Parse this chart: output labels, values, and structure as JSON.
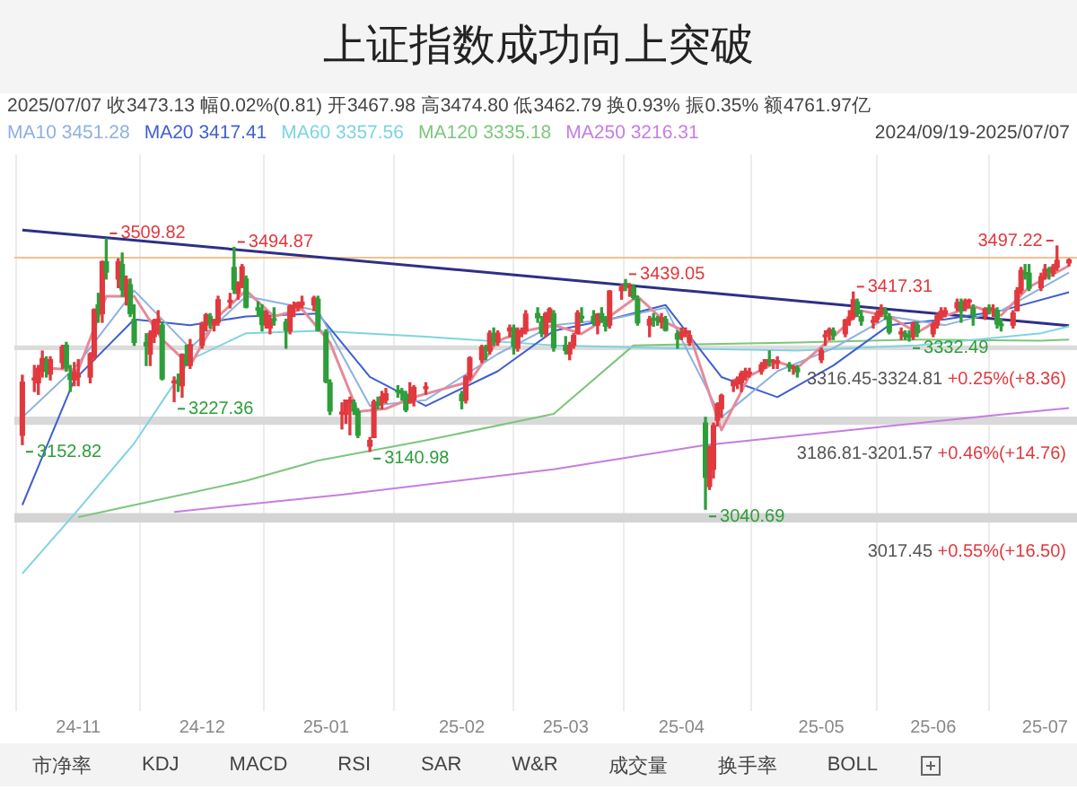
{
  "chart_data": {
    "type": "candlestick",
    "title": "上证指数成功向上突破",
    "x": [
      "2024-10-18",
      "2024-10-21",
      "2024-10-22",
      "2024-10-23",
      "2024-10-24",
      "2024-10-25",
      "2024-10-28",
      "2024-10-29",
      "2024-10-30",
      "2024-10-31",
      "2024-11-01",
      "2024-11-04",
      "2024-11-05",
      "2024-11-06",
      "2024-11-07",
      "2024-11-08",
      "2024-11-11",
      "2024-11-12",
      "2024-11-13",
      "2024-11-14",
      "2024-11-15",
      "2024-11-18",
      "2024-11-19",
      "2024-11-20",
      "2024-11-21",
      "2024-11-22",
      "2024-11-25",
      "2024-11-26",
      "2024-11-27",
      "2024-11-28",
      "2024-11-29",
      "2024-12-02",
      "2024-12-03",
      "2024-12-04",
      "2024-12-05",
      "2024-12-06",
      "2024-12-09",
      "2024-12-10",
      "2024-12-11",
      "2024-12-12",
      "2024-12-13",
      "2024-12-16",
      "2024-12-17",
      "2024-12-18",
      "2024-12-19",
      "2024-12-20",
      "2024-12-23",
      "2024-12-24",
      "2024-12-25",
      "2024-12-26",
      "2024-12-27",
      "2024-12-30",
      "2024-12-31",
      "2025-01-02",
      "2025-01-03",
      "2025-01-06",
      "2025-01-07",
      "2025-01-08",
      "2025-01-09",
      "2025-01-10",
      "2025-01-13",
      "2025-01-14",
      "2025-01-15",
      "2025-01-16",
      "2025-01-17",
      "2025-01-20",
      "2025-01-21",
      "2025-01-22",
      "2025-01-23",
      "2025-01-24",
      "2025-01-27",
      "2025-02-05",
      "2025-02-06",
      "2025-02-07",
      "2025-02-10",
      "2025-02-11",
      "2025-02-12",
      "2025-02-13",
      "2025-02-14",
      "2025-02-17",
      "2025-02-18",
      "2025-02-19",
      "2025-02-20",
      "2025-02-21",
      "2025-02-24",
      "2025-02-25",
      "2025-02-26",
      "2025-02-27",
      "2025-02-28",
      "2025-03-03",
      "2025-03-04",
      "2025-03-05",
      "2025-03-06",
      "2025-03-07",
      "2025-03-10",
      "2025-03-11",
      "2025-03-12",
      "2025-03-13",
      "2025-03-14",
      "2025-03-17",
      "2025-03-18",
      "2025-03-19",
      "2025-03-20",
      "2025-03-21",
      "2025-03-24",
      "2025-03-25",
      "2025-03-26",
      "2025-03-27",
      "2025-03-28",
      "2025-03-31",
      "2025-04-01",
      "2025-04-02",
      "2025-04-03",
      "2025-04-07",
      "2025-04-08",
      "2025-04-09",
      "2025-04-10",
      "2025-04-11",
      "2025-04-14",
      "2025-04-15",
      "2025-04-16",
      "2025-04-17",
      "2025-04-18",
      "2025-04-21",
      "2025-04-22",
      "2025-04-23",
      "2025-04-24",
      "2025-04-25",
      "2025-04-28",
      "2025-04-29",
      "2025-04-30",
      "2025-05-06",
      "2025-05-07",
      "2025-05-08",
      "2025-05-09",
      "2025-05-12",
      "2025-05-13",
      "2025-05-14",
      "2025-05-15",
      "2025-05-16",
      "2025-05-19",
      "2025-05-20",
      "2025-05-21",
      "2025-05-22",
      "2025-05-23",
      "2025-05-26",
      "2025-05-27",
      "2025-05-28",
      "2025-05-29",
      "2025-05-30",
      "2025-06-03",
      "2025-06-04",
      "2025-06-05",
      "2025-06-06",
      "2025-06-09",
      "2025-06-10",
      "2025-06-11",
      "2025-06-12",
      "2025-06-13",
      "2025-06-16",
      "2025-06-17",
      "2025-06-18",
      "2025-06-19",
      "2025-06-20",
      "2025-06-23",
      "2025-06-24",
      "2025-06-25",
      "2025-06-26",
      "2025-06-27",
      "2025-06-30",
      "2025-07-01",
      "2025-07-02",
      "2025-07-03",
      "2025-07-04",
      "2025-07-07"
    ],
    "ohlc": [
      [
        3169,
        3273,
        3152.82,
        3261
      ],
      [
        3265,
        3290,
        3245,
        3268
      ],
      [
        3260,
        3290,
        3240,
        3285
      ],
      [
        3280,
        3315,
        3270,
        3302
      ],
      [
        3295,
        3305,
        3270,
        3280
      ],
      [
        3275,
        3305,
        3265,
        3300
      ],
      [
        3295,
        3325,
        3285,
        3322
      ],
      [
        3325,
        3330,
        3280,
        3286
      ],
      [
        3275,
        3290,
        3245,
        3266
      ],
      [
        3265,
        3295,
        3255,
        3279
      ],
      [
        3270,
        3300,
        3255,
        3272
      ],
      [
        3270,
        3312,
        3260,
        3310
      ],
      [
        3305,
        3388,
        3300,
        3387
      ],
      [
        3395,
        3415,
        3365,
        3383
      ],
      [
        3380,
        3471,
        3365,
        3470
      ],
      [
        3470,
        3509.82,
        3440,
        3452
      ],
      [
        3440,
        3475,
        3425,
        3470
      ],
      [
        3465,
        3485,
        3410,
        3421
      ],
      [
        3410,
        3445,
        3395,
        3439
      ],
      [
        3430,
        3440,
        3375,
        3380
      ],
      [
        3370,
        3395,
        3325,
        3330
      ],
      [
        3330,
        3345,
        3290,
        3324
      ],
      [
        3310,
        3350,
        3290,
        3346
      ],
      [
        3340,
        3370,
        3330,
        3368
      ],
      [
        3365,
        3385,
        3345,
        3370
      ],
      [
        3360,
        3365,
        3265,
        3267
      ],
      [
        3260,
        3270,
        3227.36,
        3263
      ],
      [
        3260,
        3275,
        3245,
        3259
      ],
      [
        3255,
        3310,
        3235,
        3309
      ],
      [
        3305,
        3325,
        3290,
        3295
      ],
      [
        3290,
        3335,
        3285,
        3326
      ],
      [
        3325,
        3365,
        3320,
        3363
      ],
      [
        3360,
        3380,
        3350,
        3378
      ],
      [
        3375,
        3380,
        3355,
        3364
      ],
      [
        3360,
        3370,
        3350,
        3368
      ],
      [
        3365,
        3410,
        3360,
        3404
      ],
      [
        3400,
        3415,
        3390,
        3402
      ],
      [
        3460,
        3494.87,
        3415,
        3422
      ],
      [
        3415,
        3435,
        3405,
        3432
      ],
      [
        3430,
        3465,
        3425,
        3461
      ],
      [
        3440,
        3445,
        3390,
        3391
      ],
      [
        3390,
        3400,
        3375,
        3386
      ],
      [
        3385,
        3395,
        3350,
        3361
      ],
      [
        3360,
        3385,
        3355,
        3382
      ],
      [
        3355,
        3375,
        3345,
        3370
      ],
      [
        3370,
        3390,
        3360,
        3368
      ],
      [
        3365,
        3370,
        3320,
        3351
      ],
      [
        3350,
        3395,
        3345,
        3393
      ],
      [
        3390,
        3400,
        3375,
        3394
      ],
      [
        3390,
        3400,
        3385,
        3398
      ],
      [
        3395,
        3410,
        3390,
        3400
      ],
      [
        3395,
        3410,
        3385,
        3407
      ],
      [
        3405,
        3410,
        3350,
        3351
      ],
      [
        3347,
        3352,
        3260,
        3262
      ],
      [
        3260,
        3265,
        3205,
        3211
      ],
      [
        3206,
        3225,
        3180,
        3206
      ],
      [
        3205,
        3230,
        3190,
        3230
      ],
      [
        3225,
        3235,
        3170,
        3230
      ],
      [
        3225,
        3230,
        3205,
        3211
      ],
      [
        3210,
        3215,
        3165,
        3169
      ],
      [
        3150,
        3165,
        3140.98,
        3160
      ],
      [
        3165,
        3230,
        3165,
        3227
      ],
      [
        3225,
        3235,
        3215,
        3221
      ],
      [
        3225,
        3245,
        3215,
        3236
      ],
      [
        3230,
        3250,
        3225,
        3241
      ],
      [
        3245,
        3255,
        3235,
        3244
      ],
      [
        3245,
        3250,
        3230,
        3242
      ],
      [
        3240,
        3245,
        3210,
        3213
      ],
      [
        3225,
        3260,
        3225,
        3230
      ],
      [
        3230,
        3255,
        3220,
        3252
      ],
      [
        3250,
        3260,
        3240,
        3250
      ],
      [
        3240,
        3245,
        3215,
        3229
      ],
      [
        3230,
        3272,
        3225,
        3270
      ],
      [
        3270,
        3305,
        3265,
        3303
      ],
      [
        3300,
        3325,
        3295,
        3322
      ],
      [
        3320,
        3325,
        3300,
        3318
      ],
      [
        3315,
        3350,
        3310,
        3346
      ],
      [
        3345,
        3355,
        3325,
        3333
      ],
      [
        3330,
        3350,
        3325,
        3346
      ],
      [
        3350,
        3360,
        3340,
        3355
      ],
      [
        3355,
        3360,
        3310,
        3324
      ],
      [
        3320,
        3355,
        3315,
        3351
      ],
      [
        3345,
        3355,
        3340,
        3350
      ],
      [
        3350,
        3385,
        3345,
        3379
      ],
      [
        3380,
        3390,
        3365,
        3373
      ],
      [
        3365,
        3375,
        3340,
        3346
      ],
      [
        3345,
        3382,
        3340,
        3380
      ],
      [
        3380,
        3390,
        3365,
        3388
      ],
      [
        3380,
        3385,
        3315,
        3321
      ],
      [
        3325,
        3340,
        3310,
        3316
      ],
      [
        3310,
        3330,
        3300,
        3324
      ],
      [
        3325,
        3345,
        3320,
        3342
      ],
      [
        3345,
        3385,
        3345,
        3381
      ],
      [
        3375,
        3390,
        3365,
        3372
      ],
      [
        3375,
        3385,
        3360,
        3366
      ],
      [
        3360,
        3380,
        3345,
        3379
      ],
      [
        3380,
        3390,
        3365,
        3371
      ],
      [
        3370,
        3375,
        3350,
        3358
      ],
      [
        3360,
        3420,
        3355,
        3419
      ],
      [
        3420,
        3430,
        3405,
        3426
      ],
      [
        3430,
        3439.05,
        3420,
        3429
      ],
      [
        3425,
        3432,
        3410,
        3426
      ],
      [
        3425,
        3430,
        3405,
        3408
      ],
      [
        3405,
        3410,
        3360,
        3364
      ],
      [
        3360,
        3375,
        3340,
        3370
      ],
      [
        3370,
        3380,
        3358,
        3369
      ],
      [
        3370,
        3375,
        3360,
        3368
      ],
      [
        3365,
        3380,
        3355,
        3373
      ],
      [
        3370,
        3375,
        3350,
        3351
      ],
      [
        3345,
        3350,
        3320,
        3336
      ],
      [
        3340,
        3355,
        3335,
        3348
      ],
      [
        3345,
        3355,
        3340,
        3350
      ],
      [
        3330,
        3350,
        3325,
        3342
      ],
      [
        3190,
        3200,
        3040.69,
        3096
      ],
      [
        3080,
        3150,
        3075,
        3145
      ],
      [
        3110,
        3190,
        3095,
        3186
      ],
      [
        3195,
        3225,
        3185,
        3223
      ],
      [
        3215,
        3240,
        3200,
        3238
      ],
      [
        3255,
        3265,
        3245,
        3262
      ],
      [
        3260,
        3270,
        3250,
        3267
      ],
      [
        3260,
        3280,
        3245,
        3276
      ],
      [
        3270,
        3285,
        3265,
        3280
      ],
      [
        3275,
        3285,
        3270,
        3277
      ],
      [
        3280,
        3295,
        3275,
        3291
      ],
      [
        3290,
        3300,
        3285,
        3300
      ],
      [
        3300,
        3315,
        3290,
        3296
      ],
      [
        3295,
        3300,
        3285,
        3297
      ],
      [
        3295,
        3305,
        3285,
        3295
      ],
      [
        3290,
        3295,
        3280,
        3288
      ],
      [
        3285,
        3290,
        3275,
        3286
      ],
      [
        3285,
        3290,
        3270,
        3279
      ],
      [
        3300,
        3320,
        3295,
        3316
      ],
      [
        3340,
        3350,
        3325,
        3343
      ],
      [
        3345,
        3355,
        3335,
        3352
      ],
      [
        3350,
        3355,
        3335,
        3342
      ],
      [
        3345,
        3370,
        3340,
        3369
      ],
      [
        3370,
        3385,
        3360,
        3374
      ],
      [
        3375,
        3417.31,
        3370,
        3404
      ],
      [
        3400,
        3405,
        3375,
        3380
      ],
      [
        3375,
        3385,
        3360,
        3367
      ],
      [
        3365,
        3375,
        3355,
        3367
      ],
      [
        3370,
        3385,
        3365,
        3381
      ],
      [
        3380,
        3395,
        3375,
        3388
      ],
      [
        3385,
        3390,
        3370,
        3380
      ],
      [
        3375,
        3380,
        3345,
        3348
      ],
      [
        3345,
        3355,
        3335,
        3346
      ],
      [
        3345,
        3350,
        3335,
        3340
      ],
      [
        3340,
        3350,
        3332.49,
        3339
      ],
      [
        3340,
        3365,
        3335,
        3363
      ],
      [
        3360,
        3365,
        3340,
        3347
      ],
      [
        3345,
        3365,
        3340,
        3361
      ],
      [
        3360,
        3380,
        3355,
        3376
      ],
      [
        3375,
        3390,
        3370,
        3384
      ],
      [
        3380,
        3390,
        3375,
        3385
      ],
      [
        3390,
        3405,
        3385,
        3399
      ],
      [
        3400,
        3405,
        3365,
        3385
      ],
      [
        3390,
        3405,
        3385,
        3402
      ],
      [
        3400,
        3405,
        3390,
        3402
      ],
      [
        3390,
        3395,
        3360,
        3377
      ],
      [
        3375,
        3390,
        3370,
        3388
      ],
      [
        3390,
        3395,
        3380,
        3387
      ],
      [
        3385,
        3395,
        3375,
        3388
      ],
      [
        3385,
        3390,
        3355,
        3362
      ],
      [
        3360,
        3370,
        3350,
        3359
      ],
      [
        3360,
        3385,
        3355,
        3381
      ],
      [
        3385,
        3425,
        3385,
        3420
      ],
      [
        3420,
        3460,
        3415,
        3455
      ],
      [
        3450,
        3465,
        3440,
        3448
      ],
      [
        3450,
        3465,
        3420,
        3424
      ],
      [
        3425,
        3450,
        3420,
        3444
      ],
      [
        3445,
        3465,
        3440,
        3457
      ],
      [
        3455,
        3460,
        3440,
        3454
      ],
      [
        3450,
        3465,
        3445,
        3461
      ],
      [
        3460,
        3497.22,
        3455,
        3472.32
      ],
      [
        3467.98,
        3474.8,
        3462.79,
        3473.13
      ]
    ],
    "series": [
      {
        "type": "line",
        "color": "#e58a9a",
        "x": [
          "2024-10-25",
          "2024-11-01",
          "2024-11-08",
          "2024-11-15",
          "2024-11-22",
          "2024-11-29",
          "2024-12-06",
          "2024-12-13",
          "2024-12-20",
          "2024-12-27",
          "2025-01-03",
          "2025-01-10",
          "2025-01-17",
          "2025-01-24",
          "2025-02-07",
          "2025-02-14",
          "2025-02-21",
          "2025-02-28",
          "2025-03-07",
          "2025-03-14",
          "2025-03-21",
          "2025-03-28",
          "2025-04-03",
          "2025-04-11",
          "2025-04-18",
          "2025-04-25",
          "2025-04-30",
          "2025-05-09",
          "2025-05-16",
          "2025-05-23",
          "2025-05-30",
          "2025-06-06",
          "2025-06-13",
          "2025-06-20",
          "2025-06-27",
          "2025-07-07"
        ],
        "values": [
          3285,
          3282,
          3410,
          3410,
          3335,
          3290,
          3375,
          3420,
          3375,
          3388,
          3330,
          3210,
          3215,
          3235,
          3262,
          3333,
          3350,
          3360,
          3345,
          3375,
          3410,
          3365,
          3345,
          3178,
          3272,
          3296,
          3286,
          3340,
          3385,
          3375,
          3347,
          3376,
          3393,
          3377,
          3426,
          3463
        ]
      },
      {
        "type": "line",
        "name": "MA10",
        "color": "#8fb0e0",
        "x": [
          "2024-10-18",
          "2024-10-31",
          "2024-11-15",
          "2024-11-29",
          "2024-12-13",
          "2024-12-31",
          "2025-01-13",
          "2025-01-27",
          "2025-02-14",
          "2025-02-28",
          "2025-03-14",
          "2025-03-28",
          "2025-04-11",
          "2025-04-25",
          "2025-05-09",
          "2025-05-23",
          "2025-06-06",
          "2025-06-20",
          "2025-07-07"
        ],
        "values": [
          3200,
          3285,
          3420,
          3320,
          3410,
          3385,
          3220,
          3230,
          3310,
          3360,
          3370,
          3390,
          3200,
          3280,
          3320,
          3375,
          3360,
          3385,
          3451
        ]
      },
      {
        "type": "line",
        "name": "MA20",
        "color": "#3f5fd0",
        "x": [
          "2024-10-18",
          "2024-10-31",
          "2024-11-15",
          "2024-11-29",
          "2024-12-13",
          "2024-12-31",
          "2025-01-13",
          "2025-01-27",
          "2025-02-14",
          "2025-02-28",
          "2025-03-14",
          "2025-03-28",
          "2025-04-11",
          "2025-04-25",
          "2025-05-09",
          "2025-05-23",
          "2025-06-06",
          "2025-06-20",
          "2025-07-07"
        ],
        "values": [
          3048,
          3265,
          3370,
          3360,
          3375,
          3380,
          3270,
          3220,
          3280,
          3350,
          3370,
          3395,
          3270,
          3235,
          3290,
          3360,
          3370,
          3385,
          3417
        ]
      },
      {
        "type": "line",
        "name": "MA60",
        "color": "#7fd3e0",
        "x": [
          "2024-10-18",
          "2024-11-01",
          "2024-11-15",
          "2024-11-29",
          "2024-12-13",
          "2024-12-31",
          "2025-01-27",
          "2025-02-28",
          "2025-03-28",
          "2025-04-30",
          "2025-05-30",
          "2025-06-30",
          "2025-07-07"
        ],
        "values": [
          2929,
          3040,
          3155,
          3300,
          3346,
          3350,
          3340,
          3325,
          3320,
          3316,
          3325,
          3346,
          3358
        ]
      },
      {
        "type": "line",
        "name": "MA120",
        "color": "#7cc67c",
        "x": [
          "2024-11-01",
          "2024-12-13",
          "2024-12-31",
          "2025-01-27",
          "2025-02-28",
          "2025-03-20",
          "2025-04-30",
          "2025-05-30",
          "2025-06-30",
          "2025-07-07"
        ],
        "values": [
          3027,
          3090,
          3125,
          3160,
          3206,
          3325,
          3330,
          3335,
          3333,
          3335
        ]
      },
      {
        "type": "line",
        "name": "MA250",
        "color": "#c77de0",
        "x": [
          "2024-11-25",
          "2025-01-06",
          "2025-02-28",
          "2025-04-07",
          "2025-05-16",
          "2025-06-20",
          "2025-07-07"
        ],
        "values": [
          3036,
          3066,
          3110,
          3152,
          3180,
          3205,
          3216
        ]
      },
      {
        "type": "line",
        "color": "#2e2f86",
        "x": [
          "2024-10-18",
          "2025-07-07"
        ],
        "values": [
          3525,
          3359
        ]
      }
    ],
    "xticks": [
      {
        "value": "2024-11-01",
        "label": "24-11"
      },
      {
        "value": "2024-12-02",
        "label": "24-12"
      },
      {
        "value": "2025-01-02",
        "label": "25-01"
      },
      {
        "value": "2025-02-05",
        "label": "25-02"
      },
      {
        "value": "2025-03-03",
        "label": "25-03"
      },
      {
        "value": "2025-04-01",
        "label": "25-04"
      },
      {
        "value": "2025-05-06",
        "label": "25-05"
      },
      {
        "value": "2025-06-03",
        "label": "25-06"
      },
      {
        "value": "2025-07-01",
        "label": "25-07"
      }
    ],
    "xlim": [
      "2024-10-16",
      "2025-07-09"
    ],
    "tick_labels": "x",
    "grid": "x",
    "legend": "top left",
    "ref_lines": [
      {
        "axis": "y",
        "value": 3477,
        "color": "#f3c08f"
      }
    ],
    "bands": [
      {
        "axis": "y",
        "from": 3017.45,
        "to": 3033.95,
        "label": "3017.45 +0.55%(+16.50)",
        "color": "#d4d4d4"
      },
      {
        "axis": "y",
        "from": 3186.81,
        "to": 3201.57,
        "label": "3186.81-3201.57 +0.46%(+14.76)",
        "color": "#d9d9d9"
      },
      {
        "axis": "y",
        "from": 3316.45,
        "to": 3324.81,
        "label": "3316.45-3324.81 +0.25%(+8.36)",
        "color": "#dcdcdc"
      }
    ],
    "annotations": [
      "2025/07/07 收3473.13 幅0.02%(0.81) 开3467.98 高3474.80 低3462.79 换0.93% 振0.35% 额4761.97亿",
      "2024/09/19-2025/07/07",
      "3451.28",
      "3417.41",
      "3357.56",
      "3335.18",
      "3216.31",
      "市净率",
      "KDJ",
      "MACD",
      "RSI",
      "SAR",
      "W&R",
      "成交量",
      "换手率",
      "BOLL",
      {
        "text": "3509.82",
        "x": "2024-11-08",
        "y": 3509.82
      },
      {
        "text": "3494.87",
        "x": "2024-12-10",
        "y": 3494.87
      },
      {
        "text": "3227.36",
        "x": "2024-11-25",
        "y": 3227.36
      },
      {
        "text": "3152.82",
        "x": "2024-10-18",
        "y": 3152.82
      },
      {
        "text": "3140.98",
        "x": "2025-01-13",
        "y": 3140.98
      },
      {
        "text": "3439.05",
        "x": "2025-03-18",
        "y": 3439.05
      },
      {
        "text": "3040.69",
        "x": "2025-04-07",
        "y": 3040.69
      },
      {
        "text": "3417.31",
        "x": "2025-05-14",
        "y": 3417.31
      },
      {
        "text": "3332.49",
        "x": "2025-05-28",
        "y": 3332.49
      },
      {
        "text": "3497.22",
        "x": "2025-07-04",
        "y": 3497.22
      }
    ]
  }
}
